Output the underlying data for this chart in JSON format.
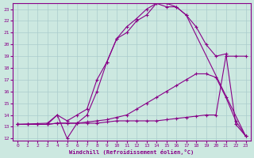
{
  "xlabel": "Windchill (Refroidissement éolien,°C)",
  "bg_color": "#cce8e0",
  "line_color": "#880088",
  "grid_color": "#aacccc",
  "xlim": [
    -0.5,
    23.5
  ],
  "ylim": [
    11.8,
    23.5
  ],
  "xticks": [
    0,
    1,
    2,
    3,
    4,
    5,
    6,
    7,
    8,
    9,
    10,
    11,
    12,
    13,
    14,
    15,
    16,
    17,
    18,
    19,
    20,
    21,
    22,
    23
  ],
  "yticks": [
    12,
    13,
    14,
    15,
    16,
    17,
    18,
    19,
    20,
    21,
    22,
    23
  ],
  "series": [
    {
      "x": [
        0,
        1,
        2,
        3,
        4,
        5,
        6,
        7,
        8,
        9,
        10,
        11,
        12,
        13,
        14,
        15,
        16,
        17,
        18,
        19,
        20,
        21,
        22,
        23
      ],
      "y": [
        13.2,
        13.2,
        13.2,
        13.2,
        13.3,
        13.3,
        13.3,
        13.3,
        13.3,
        13.4,
        13.5,
        13.5,
        13.5,
        13.5,
        13.5,
        13.6,
        13.7,
        13.8,
        13.9,
        14.0,
        14.0,
        19.0,
        19.0,
        19.0
      ]
    },
    {
      "x": [
        0,
        1,
        2,
        3,
        4,
        5,
        6,
        7,
        8,
        9,
        10,
        11,
        12,
        13,
        14,
        15,
        16,
        17,
        18,
        19,
        20,
        21,
        22,
        23
      ],
      "y": [
        13.2,
        13.2,
        13.2,
        13.2,
        13.3,
        13.3,
        13.3,
        13.4,
        13.5,
        13.6,
        13.8,
        14.0,
        14.5,
        15.0,
        15.5,
        16.0,
        16.5,
        17.0,
        17.5,
        17.5,
        17.2,
        15.5,
        13.5,
        12.2
      ]
    },
    {
      "x": [
        0,
        1,
        2,
        3,
        4,
        5,
        6,
        7,
        8,
        9,
        10,
        11,
        12,
        13,
        14,
        15,
        16,
        17,
        18,
        19,
        20,
        21,
        22,
        23
      ],
      "y": [
        13.2,
        13.2,
        13.2,
        13.2,
        14.0,
        13.5,
        14.0,
        14.5,
        17.0,
        18.5,
        20.5,
        21.0,
        22.0,
        22.5,
        23.5,
        23.5,
        23.2,
        22.5,
        21.5,
        20.0,
        19.0,
        19.2,
        13.2,
        12.2
      ]
    },
    {
      "x": [
        0,
        3,
        4,
        5,
        6,
        7,
        8,
        9,
        10,
        11,
        12,
        13,
        14,
        15,
        16,
        17,
        23
      ],
      "y": [
        13.2,
        13.3,
        14.0,
        12.0,
        13.3,
        14.0,
        16.0,
        18.5,
        20.5,
        21.5,
        22.2,
        23.0,
        23.5,
        23.2,
        23.2,
        22.5,
        12.2
      ]
    }
  ]
}
